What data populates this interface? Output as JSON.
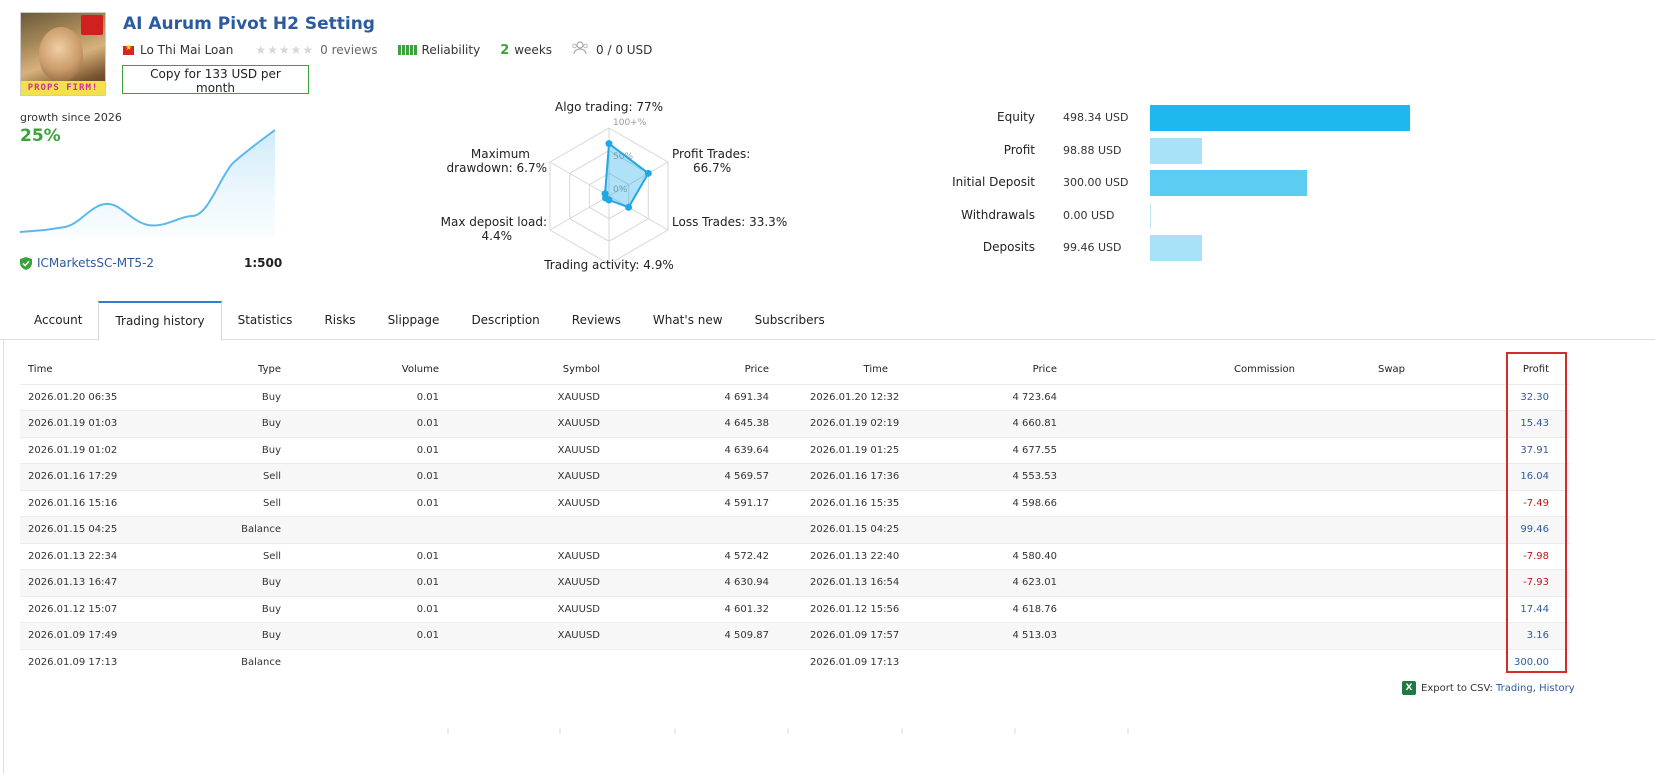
{
  "header": {
    "title": "AI Aurum Pivot H2 Setting",
    "author": "Lo Thi Mai Loan",
    "stars": "★★★★★",
    "reviews": "0 reviews",
    "reliability_label": "Reliability",
    "weeks_num": "2",
    "weeks_label": "weeks",
    "subscribers": "0 / 0 USD",
    "copy_button": "Copy for 133 USD per month",
    "avatar_banner": "PROPS FIRM!"
  },
  "growth": {
    "label": "growth since 2026",
    "value": "25%",
    "broker": "ICMarketsSC-MT5-2",
    "leverage": "1:500"
  },
  "radar": {
    "scale_labels": [
      "100+%",
      "50%",
      "0%"
    ],
    "algo": "Algo trading: 77%",
    "profit_trades_1": "Profit Trades:",
    "profit_trades_2": "66.7%",
    "loss_trades": "Loss Trades: 33.3%",
    "activity": "Trading activity: 4.9%",
    "deposit_load_1": "Max deposit load:",
    "deposit_load_2": "4.4%",
    "drawdown_1": "Maximum",
    "drawdown_2": "drawdown: 6.7%",
    "values": {
      "algo": 77,
      "profit_trades": 66.7,
      "loss_trades": 33.3,
      "activity": 4.9,
      "deposit_load": 4.4,
      "drawdown": 6.7
    }
  },
  "balances": [
    {
      "label": "Equity",
      "value": "498.34 USD",
      "amount": 498.34,
      "color": "#1fb8ee"
    },
    {
      "label": "Profit",
      "value": "98.88 USD",
      "amount": 98.88,
      "color": "#a7e2f8"
    },
    {
      "label": "Initial Deposit",
      "value": "300.00 USD",
      "amount": 300.0,
      "color": "#5dccf3"
    },
    {
      "label": "Withdrawals",
      "value": "0.00 USD",
      "amount": 0.0,
      "color": "#a7e2f8"
    },
    {
      "label": "Deposits",
      "value": "99.46 USD",
      "amount": 99.46,
      "color": "#a7e2f8"
    }
  ],
  "tabs": [
    "Account",
    "Trading history",
    "Statistics",
    "Risks",
    "Slippage",
    "Description",
    "Reviews",
    "What's new",
    "Subscribers"
  ],
  "table": {
    "headers": [
      "Time",
      "Type",
      "Volume",
      "Symbol",
      "Price",
      "Time",
      "Price",
      "Commission",
      "Swap",
      "Profit"
    ],
    "rows": [
      [
        "2026.01.20 06:35",
        "Buy",
        "0.01",
        "XAUUSD",
        "4 691.34",
        "2026.01.20 12:32",
        "4 723.64",
        "",
        "",
        "32.30"
      ],
      [
        "2026.01.19 01:03",
        "Buy",
        "0.01",
        "XAUUSD",
        "4 645.38",
        "2026.01.19 02:19",
        "4 660.81",
        "",
        "",
        "15.43"
      ],
      [
        "2026.01.19 01:02",
        "Buy",
        "0.01",
        "XAUUSD",
        "4 639.64",
        "2026.01.19 01:25",
        "4 677.55",
        "",
        "",
        "37.91"
      ],
      [
        "2026.01.16 17:29",
        "Sell",
        "0.01",
        "XAUUSD",
        "4 569.57",
        "2026.01.16 17:36",
        "4 553.53",
        "",
        "",
        "16.04"
      ],
      [
        "2026.01.16 15:16",
        "Sell",
        "0.01",
        "XAUUSD",
        "4 591.17",
        "2026.01.16 15:35",
        "4 598.66",
        "",
        "",
        "-7.49"
      ],
      [
        "2026.01.15 04:25",
        "Balance",
        "",
        "",
        "",
        "2026.01.15 04:25",
        "",
        "",
        "",
        "99.46"
      ],
      [
        "2026.01.13 22:34",
        "Sell",
        "0.01",
        "XAUUSD",
        "4 572.42",
        "2026.01.13 22:40",
        "4 580.40",
        "",
        "",
        "-7.98"
      ],
      [
        "2026.01.13 16:47",
        "Buy",
        "0.01",
        "XAUUSD",
        "4 630.94",
        "2026.01.13 16:54",
        "4 623.01",
        "",
        "",
        "-7.93"
      ],
      [
        "2026.01.12 15:07",
        "Buy",
        "0.01",
        "XAUUSD",
        "4 601.32",
        "2026.01.12 15:56",
        "4 618.76",
        "",
        "",
        "17.44"
      ],
      [
        "2026.01.09 17:49",
        "Buy",
        "0.01",
        "XAUUSD",
        "4 509.87",
        "2026.01.09 17:57",
        "4 513.03",
        "",
        "",
        "3.16"
      ],
      [
        "2026.01.09 17:13",
        "Balance",
        "",
        "",
        "",
        "2026.01.09 17:13",
        "",
        "",
        "",
        "300.00"
      ]
    ]
  },
  "export": {
    "label": "Export to CSV:",
    "trading": "Trading",
    "history": "History",
    "icon_text": "X"
  },
  "colors": {
    "accent": "#2c5aa0",
    "green": "#3aa33a",
    "negative": "#c0161a",
    "highlight_box": "#d22c2c"
  }
}
